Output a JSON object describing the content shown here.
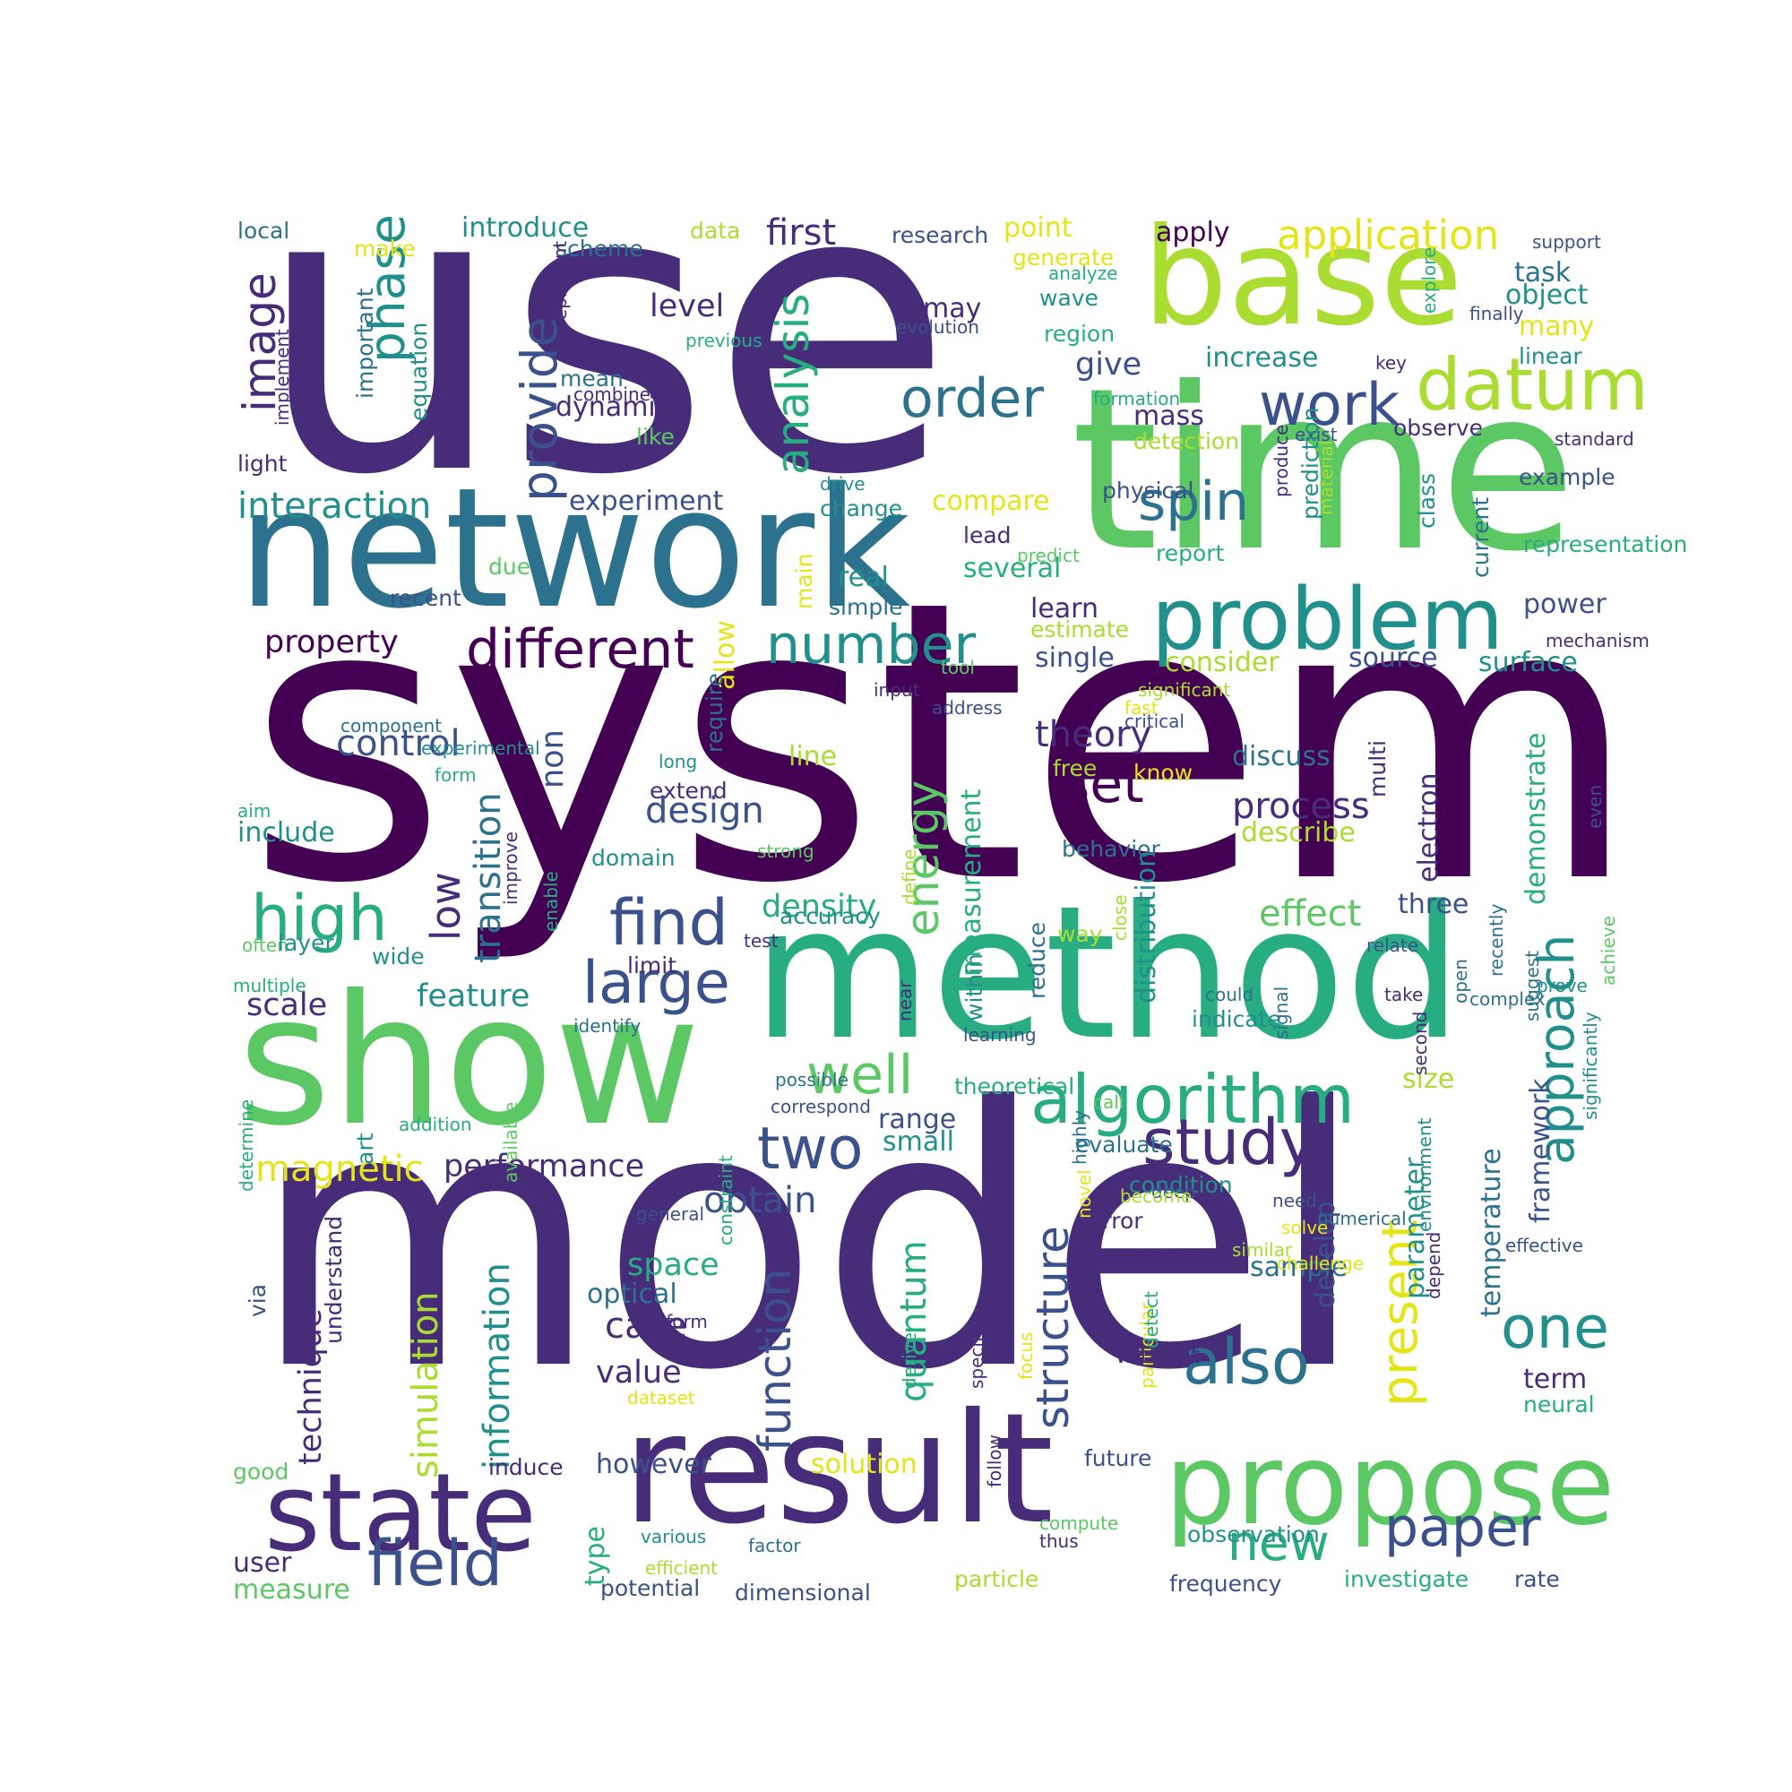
{
  "palette": {
    "p1": "#440154",
    "p2": "#472c7a",
    "p3": "#3b518b",
    "p4": "#2c718e",
    "p5": "#21908d",
    "p6": "#27ad81",
    "p7": "#5cc863",
    "p8": "#aadc32",
    "p9": "#e5e419"
  },
  "words": [
    {
      "text": "use",
      "c": "p2"
    },
    {
      "text": "system",
      "c": "p1"
    },
    {
      "text": "model",
      "c": "p2"
    },
    {
      "text": "time",
      "c": "p7"
    },
    {
      "text": "network",
      "c": "p4"
    },
    {
      "text": "method",
      "c": "p6"
    },
    {
      "text": "show",
      "c": "p7"
    },
    {
      "text": "result",
      "c": "p2"
    },
    {
      "text": "base",
      "c": "p8"
    },
    {
      "text": "propose",
      "c": "p7"
    },
    {
      "text": "state",
      "c": "p2"
    },
    {
      "text": "problem",
      "c": "p5"
    },
    {
      "text": "datum",
      "c": "p8"
    },
    {
      "text": "algorithm",
      "c": "p6"
    },
    {
      "text": "work",
      "c": "p3"
    },
    {
      "text": "order",
      "c": "p4"
    },
    {
      "text": "different",
      "c": "p1"
    },
    {
      "text": "field",
      "c": "p3"
    },
    {
      "text": "paper",
      "c": "p3"
    },
    {
      "text": "high",
      "c": "p6"
    },
    {
      "text": "find",
      "c": "p3"
    },
    {
      "text": "large",
      "c": "p3"
    },
    {
      "text": "study",
      "c": "p2"
    },
    {
      "text": "two",
      "c": "p3"
    },
    {
      "text": "also",
      "c": "p4"
    },
    {
      "text": "one",
      "c": "p5"
    },
    {
      "text": "spin",
      "c": "p4"
    },
    {
      "text": "set",
      "c": "p1"
    },
    {
      "text": "number",
      "c": "p5"
    },
    {
      "text": "well",
      "c": "p7"
    },
    {
      "text": "new",
      "c": "p6"
    },
    {
      "text": "phase",
      "c": "p5"
    },
    {
      "text": "provide",
      "c": "p3"
    },
    {
      "text": "analysis",
      "c": "p6"
    },
    {
      "text": "image",
      "c": "p2"
    },
    {
      "text": "energy",
      "c": "p7"
    },
    {
      "text": "structure",
      "c": "p3"
    },
    {
      "text": "present",
      "c": "p9"
    },
    {
      "text": "approach",
      "c": "p5"
    },
    {
      "text": "function",
      "c": "p3"
    },
    {
      "text": "application",
      "c": "p9"
    },
    {
      "text": "interaction",
      "c": "p5"
    },
    {
      "text": "theory",
      "c": "p2"
    },
    {
      "text": "control",
      "c": "p3"
    },
    {
      "text": "design",
      "c": "p3"
    },
    {
      "text": "process",
      "c": "p2"
    },
    {
      "text": "effect",
      "c": "p7"
    },
    {
      "text": "magnetic",
      "c": "p9"
    },
    {
      "text": "performance",
      "c": "p2"
    },
    {
      "text": "obtain",
      "c": "p3"
    },
    {
      "text": "first",
      "c": "p2"
    },
    {
      "text": "property",
      "c": "p1"
    },
    {
      "text": "level",
      "c": "p2"
    },
    {
      "text": "give",
      "c": "p3"
    },
    {
      "text": "increase",
      "c": "p5"
    },
    {
      "text": "introduce",
      "c": "p5"
    },
    {
      "text": "point",
      "c": "p9"
    },
    {
      "text": "feature",
      "c": "p5"
    },
    {
      "text": "scale",
      "c": "p2"
    },
    {
      "text": "include",
      "c": "p5"
    },
    {
      "text": "density",
      "c": "p6"
    },
    {
      "text": "low",
      "c": "p2"
    },
    {
      "text": "transition",
      "c": "p4"
    },
    {
      "text": "non",
      "c": "p3"
    },
    {
      "text": "simulation",
      "c": "p8"
    },
    {
      "text": "information",
      "c": "p5"
    },
    {
      "text": "technique",
      "c": "p2"
    },
    {
      "text": "quantum",
      "c": "p6"
    },
    {
      "text": "case",
      "c": "p2"
    },
    {
      "text": "value",
      "c": "p2"
    },
    {
      "text": "space",
      "c": "p6"
    },
    {
      "text": "optical",
      "c": "p4"
    },
    {
      "text": "user",
      "c": "p2"
    },
    {
      "text": "measure",
      "c": "p7"
    },
    {
      "text": "however",
      "c": "p3"
    },
    {
      "text": "solution",
      "c": "p9"
    },
    {
      "text": "type",
      "c": "p6"
    },
    {
      "text": "potential",
      "c": "p3"
    },
    {
      "text": "dimensional",
      "c": "p3"
    },
    {
      "text": "particle",
      "c": "p8"
    },
    {
      "text": "frequency",
      "c": "p3"
    },
    {
      "text": "investigate",
      "c": "p6"
    },
    {
      "text": "rate",
      "c": "p3"
    },
    {
      "text": "observation",
      "c": "p5"
    },
    {
      "text": "sample",
      "c": "p4"
    },
    {
      "text": "develop",
      "c": "p3"
    },
    {
      "text": "parameter",
      "c": "p5"
    },
    {
      "text": "temperature",
      "c": "p4"
    },
    {
      "text": "framework",
      "c": "p3"
    },
    {
      "text": "term",
      "c": "p2"
    },
    {
      "text": "neural",
      "c": "p6"
    },
    {
      "text": "condition",
      "c": "p5"
    },
    {
      "text": "small",
      "c": "p5"
    },
    {
      "text": "range",
      "c": "p3"
    },
    {
      "text": "distribution",
      "c": "p5"
    },
    {
      "text": "measurement",
      "c": "p6"
    },
    {
      "text": "demonstrate",
      "c": "p6"
    },
    {
      "text": "electron",
      "c": "p2"
    },
    {
      "text": "describe",
      "c": "p8"
    },
    {
      "text": "three",
      "c": "p3"
    },
    {
      "text": "size",
      "c": "p8"
    },
    {
      "text": "single",
      "c": "p3"
    },
    {
      "text": "source",
      "c": "p3"
    },
    {
      "text": "surface",
      "c": "p5"
    },
    {
      "text": "consider",
      "c": "p8"
    },
    {
      "text": "power",
      "c": "p3"
    },
    {
      "text": "learn",
      "c": "p2"
    },
    {
      "text": "estimate",
      "c": "p8"
    },
    {
      "text": "real",
      "c": "p5"
    },
    {
      "text": "simple",
      "c": "p4"
    },
    {
      "text": "several",
      "c": "p6"
    },
    {
      "text": "compare",
      "c": "p9"
    },
    {
      "text": "lead",
      "c": "p2"
    },
    {
      "text": "change",
      "c": "p5"
    },
    {
      "text": "experiment",
      "c": "p3"
    },
    {
      "text": "recent",
      "c": "p3"
    },
    {
      "text": "due",
      "c": "p7"
    },
    {
      "text": "dynamic",
      "c": "p2"
    },
    {
      "text": "mean",
      "c": "p4"
    },
    {
      "text": "like",
      "c": "p7"
    },
    {
      "text": "may",
      "c": "p2"
    },
    {
      "text": "evolution",
      "c": "p3"
    },
    {
      "text": "region",
      "c": "p6"
    },
    {
      "text": "wave",
      "c": "p5"
    },
    {
      "text": "generate",
      "c": "p9"
    },
    {
      "text": "research",
      "c": "p3"
    },
    {
      "text": "data",
      "c": "p8"
    },
    {
      "text": "scheme",
      "c": "p4"
    },
    {
      "text": "make",
      "c": "p9"
    },
    {
      "text": "local",
      "c": "p4"
    },
    {
      "text": "equation",
      "c": "p5"
    },
    {
      "text": "important",
      "c": "p4"
    },
    {
      "text": "represent",
      "c": "p2"
    },
    {
      "text": "previous",
      "c": "p6"
    },
    {
      "text": "combine",
      "c": "p2"
    },
    {
      "text": "implement",
      "c": "p2"
    },
    {
      "text": "reveal",
      "c": "p2"
    },
    {
      "text": "light",
      "c": "p2"
    },
    {
      "text": "apply",
      "c": "p1"
    },
    {
      "text": "task",
      "c": "p4"
    },
    {
      "text": "object",
      "c": "p5"
    },
    {
      "text": "many",
      "c": "p9"
    },
    {
      "text": "linear",
      "c": "p5"
    },
    {
      "text": "support",
      "c": "p3"
    },
    {
      "text": "finally",
      "c": "p3"
    },
    {
      "text": "explore",
      "c": "p6"
    },
    {
      "text": "key",
      "c": "p2"
    },
    {
      "text": "analyze",
      "c": "p6"
    },
    {
      "text": "formation",
      "c": "p6"
    },
    {
      "text": "mass",
      "c": "p2"
    },
    {
      "text": "detection",
      "c": "p8"
    },
    {
      "text": "observe",
      "c": "p2"
    },
    {
      "text": "exist",
      "c": "p3"
    },
    {
      "text": "standard",
      "c": "p2"
    },
    {
      "text": "produce",
      "c": "p2"
    },
    {
      "text": "prediction",
      "c": "p5"
    },
    {
      "text": "material",
      "c": "p8"
    },
    {
      "text": "physical",
      "c": "p3"
    },
    {
      "text": "class",
      "c": "p5"
    },
    {
      "text": "current",
      "c": "p4"
    },
    {
      "text": "representation",
      "c": "p6"
    },
    {
      "text": "report",
      "c": "p6"
    },
    {
      "text": "example",
      "c": "p3"
    },
    {
      "text": "mechanism",
      "c": "p2"
    },
    {
      "text": "predict",
      "c": "p7"
    },
    {
      "text": "drive",
      "c": "p5"
    },
    {
      "text": "main",
      "c": "p9"
    },
    {
      "text": "tool",
      "c": "p7"
    },
    {
      "text": "significant",
      "c": "p8"
    },
    {
      "text": "input",
      "c": "p2"
    },
    {
      "text": "address",
      "c": "p3"
    },
    {
      "text": "critical",
      "c": "p3"
    },
    {
      "text": "fast",
      "c": "p9"
    },
    {
      "text": "know",
      "c": "p9"
    },
    {
      "text": "free",
      "c": "p8"
    },
    {
      "text": "discuss",
      "c": "p4"
    },
    {
      "text": "multi",
      "c": "p2"
    },
    {
      "text": "behavior",
      "c": "p4"
    },
    {
      "text": "line",
      "c": "p8"
    },
    {
      "text": "allow",
      "c": "p9"
    },
    {
      "text": "require",
      "c": "p4"
    },
    {
      "text": "long",
      "c": "p5"
    },
    {
      "text": "extend",
      "c": "p2"
    },
    {
      "text": "domain",
      "c": "p5"
    },
    {
      "text": "strong",
      "c": "p7"
    },
    {
      "text": "enable",
      "c": "p6"
    },
    {
      "text": "improve",
      "c": "p2"
    },
    {
      "text": "define",
      "c": "p8"
    },
    {
      "text": "close",
      "c": "p8"
    },
    {
      "text": "component",
      "c": "p4"
    },
    {
      "text": "experimental",
      "c": "p5"
    },
    {
      "text": "form",
      "c": "p6"
    },
    {
      "text": "aim",
      "c": "p6"
    },
    {
      "text": "often",
      "c": "p7"
    },
    {
      "text": "layer",
      "c": "p5"
    },
    {
      "text": "wide",
      "c": "p5"
    },
    {
      "text": "multiple",
      "c": "p6"
    },
    {
      "text": "limit",
      "c": "p2"
    },
    {
      "text": "test",
      "c": "p2"
    },
    {
      "text": "identify",
      "c": "p4"
    },
    {
      "text": "accuracy",
      "c": "p5"
    },
    {
      "text": "within",
      "c": "p5"
    },
    {
      "text": "near",
      "c": "p2"
    },
    {
      "text": "learning",
      "c": "p3"
    },
    {
      "text": "way",
      "c": "p8"
    },
    {
      "text": "could",
      "c": "p4"
    },
    {
      "text": "indicate",
      "c": "p5"
    },
    {
      "text": "reduce",
      "c": "p4"
    },
    {
      "text": "signal",
      "c": "p4"
    },
    {
      "text": "take",
      "c": "p2"
    },
    {
      "text": "relate",
      "c": "p3"
    },
    {
      "text": "second",
      "c": "p2"
    },
    {
      "text": "open",
      "c": "p4"
    },
    {
      "text": "complex",
      "c": "p4"
    },
    {
      "text": "recently",
      "c": "p4"
    },
    {
      "text": "prove",
      "c": "p5"
    },
    {
      "text": "suggest",
      "c": "p4"
    },
    {
      "text": "significantly",
      "c": "p5"
    },
    {
      "text": "achieve",
      "c": "p7"
    },
    {
      "text": "even",
      "c": "p3"
    },
    {
      "text": "art",
      "c": "p5"
    },
    {
      "text": "available",
      "c": "p7"
    },
    {
      "text": "determine",
      "c": "p6"
    },
    {
      "text": "addition",
      "c": "p6"
    },
    {
      "text": "possible",
      "c": "p4"
    },
    {
      "text": "correspond",
      "c": "p3"
    },
    {
      "text": "theoretical",
      "c": "p6"
    },
    {
      "text": "call",
      "c": "p7"
    },
    {
      "text": "evaluate",
      "c": "p4"
    },
    {
      "text": "highly",
      "c": "p4"
    },
    {
      "text": "deep",
      "c": "p3"
    },
    {
      "text": "become",
      "c": "p8"
    },
    {
      "text": "error",
      "c": "p2"
    },
    {
      "text": "novel",
      "c": "p9"
    },
    {
      "text": "need",
      "c": "p3"
    },
    {
      "text": "via",
      "c": "p3"
    },
    {
      "text": "general",
      "c": "p3"
    },
    {
      "text": "constraint",
      "c": "p6"
    },
    {
      "text": "focus",
      "c": "p9"
    },
    {
      "text": "solve",
      "c": "p9"
    },
    {
      "text": "particular",
      "c": "p9"
    },
    {
      "text": "numerical",
      "c": "p4"
    },
    {
      "text": "effective",
      "c": "p3"
    },
    {
      "text": "depend",
      "c": "p2"
    },
    {
      "text": "without",
      "c": "p2"
    },
    {
      "text": "environment",
      "c": "p5"
    },
    {
      "text": "challenge",
      "c": "p9"
    },
    {
      "text": "similar",
      "c": "p8"
    },
    {
      "text": "detect",
      "c": "p6"
    },
    {
      "text": "understand",
      "c": "p2"
    },
    {
      "text": "perform",
      "c": "p2"
    },
    {
      "text": "dataset",
      "c": "p9"
    },
    {
      "text": "derive",
      "c": "p6"
    },
    {
      "text": "specific",
      "c": "p2"
    },
    {
      "text": "good",
      "c": "p7"
    },
    {
      "text": "induce",
      "c": "p2"
    },
    {
      "text": "follow",
      "c": "p2"
    },
    {
      "text": "future",
      "c": "p3"
    },
    {
      "text": "compute",
      "c": "p7"
    },
    {
      "text": "thus",
      "c": "p2"
    },
    {
      "text": "various",
      "c": "p5"
    },
    {
      "text": "factor",
      "c": "p4"
    },
    {
      "text": "efficient",
      "c": "p8"
    }
  ]
}
